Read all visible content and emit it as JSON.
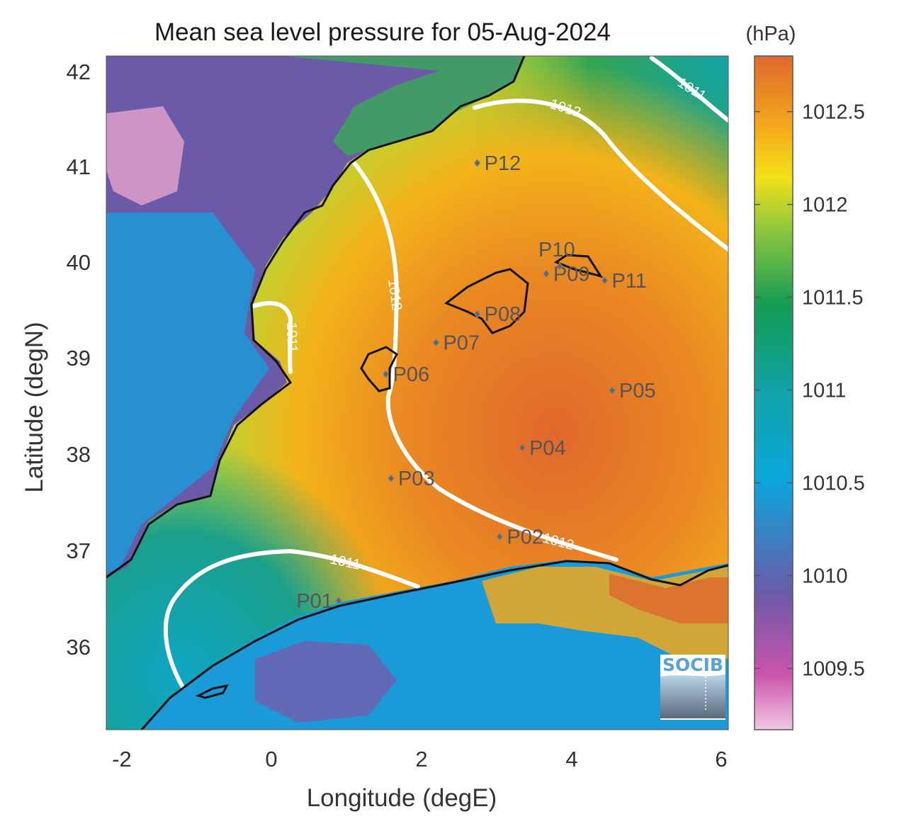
{
  "title": "Mean sea level pressure for 05-Aug-2024",
  "colorbar": {
    "unit_label": "(hPa)",
    "ticks": [
      "1012.5",
      "1012",
      "1011.5",
      "1011",
      "1010.5",
      "1010",
      "1009.5"
    ],
    "range": [
      1009.17,
      1012.8
    ]
  },
  "axes": {
    "xlabel": "Longitude (degE)",
    "ylabel": "Latitude (degN)",
    "xticks": [
      "-2",
      "0",
      "2",
      "4",
      "6"
    ],
    "yticks": [
      "42",
      "41",
      "40",
      "39",
      "38",
      "37",
      "36"
    ],
    "xlim": [
      -2.25,
      6.05
    ],
    "ylim": [
      35.15,
      42.2
    ]
  },
  "chart_data": {
    "type": "heatmap",
    "title": "Mean sea level pressure for 05-Aug-2024",
    "xlabel": "Longitude (degE)",
    "ylabel": "Latitude (degN)",
    "xlim": [
      -2.25,
      6.05
    ],
    "ylim": [
      35.15,
      42.2
    ],
    "colorbar_label": "(hPa)",
    "colorbar_range": [
      1009.17,
      1012.8
    ],
    "contours": [
      {
        "level": "1011",
        "labels_shown": 3
      },
      {
        "level": "1012",
        "labels_shown": 3
      }
    ],
    "stations": [
      {
        "name": "P01",
        "lon": 0.85,
        "lat": 36.5
      },
      {
        "name": "P02",
        "lon": 3.0,
        "lat": 37.17
      },
      {
        "name": "P03",
        "lon": 1.55,
        "lat": 37.78
      },
      {
        "name": "P04",
        "lon": 3.3,
        "lat": 38.1
      },
      {
        "name": "P05",
        "lon": 4.5,
        "lat": 38.7
      },
      {
        "name": "P06",
        "lon": 1.48,
        "lat": 38.87
      },
      {
        "name": "P07",
        "lon": 2.15,
        "lat": 39.2
      },
      {
        "name": "P08",
        "lon": 2.7,
        "lat": 39.5
      },
      {
        "name": "P09",
        "lon": 3.62,
        "lat": 39.92
      },
      {
        "name": "P10",
        "lon": 3.8,
        "lat": 40.0
      },
      {
        "name": "P11",
        "lon": 4.4,
        "lat": 39.85
      },
      {
        "name": "P12",
        "lon": 2.7,
        "lat": 41.08
      }
    ]
  },
  "logo": {
    "text": "SOCIB"
  }
}
